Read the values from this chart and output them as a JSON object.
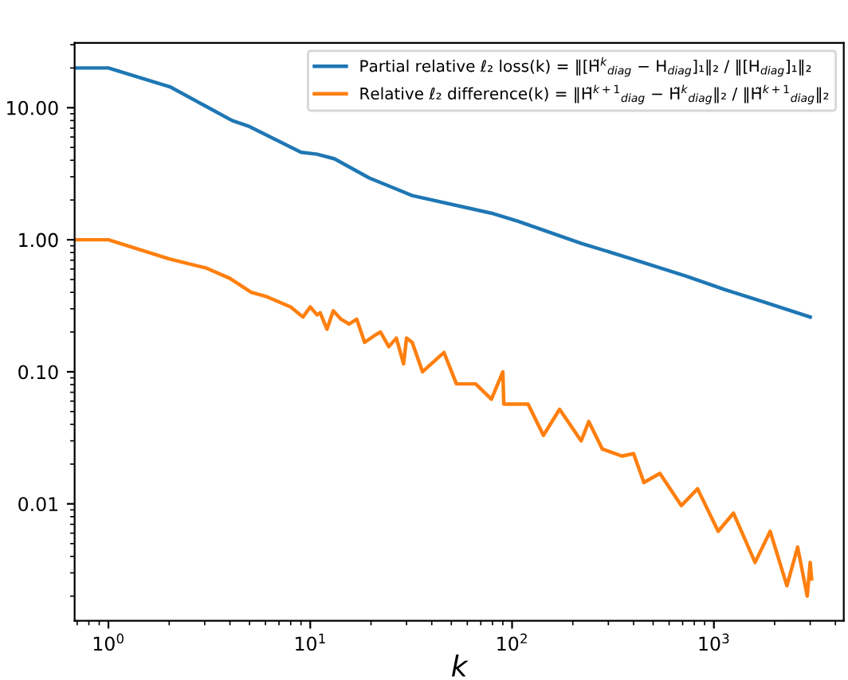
{
  "chart_data": {
    "type": "line",
    "xlabel": "k",
    "log": "xy",
    "legend": "top right",
    "grid": false,
    "xlim": [
      0.68,
      4400
    ],
    "ylim": [
      0.0013,
      31
    ],
    "xticks": [
      {
        "value": 1,
        "label": "10$^{0}$"
      },
      {
        "value": 10,
        "label": "10$^{1}$"
      },
      {
        "value": 100,
        "label": "10$^{2}$"
      },
      {
        "value": 1000,
        "label": "10$^{3}$"
      }
    ],
    "yticks": [
      {
        "value": 0.01,
        "label": "0.01"
      },
      {
        "value": 0.1,
        "label": "0.10"
      },
      {
        "value": 1,
        "label": "1.00"
      },
      {
        "value": 10,
        "label": "10.00"
      }
    ],
    "series": [
      {
        "name": "Partial relative ℓ₂ loss(k) = ‖[H̃$^{k}$$_{diag}$ − H$_{diag}$]₁‖₂ / ‖[H$_{diag}$]₁‖₂",
        "color": "#1f77b4",
        "x": [
          0.68,
          1,
          2.02,
          4.1,
          5,
          9,
          10.8,
          13.2,
          19.6,
          32,
          79,
          107,
          220,
          400,
          730,
          1130,
          1800,
          3000
        ],
        "values": [
          20,
          20,
          14.4,
          8.0,
          7.2,
          4.6,
          4.45,
          4.1,
          2.94,
          2.16,
          1.59,
          1.38,
          0.94,
          0.71,
          0.53,
          0.42,
          0.335,
          0.26
        ]
      },
      {
        "name": "Relative ℓ₂ difference(k) = ‖H̃$^{k+1}$$_{diag}$ − H̃$^{k}$$_{diag}$‖₂ / ‖H̃$^{k+1}$$_{diag}$‖₂",
        "color": "#ff7f0e",
        "x": [
          0.68,
          1,
          2.0,
          3.06,
          4.0,
          5.1,
          6.1,
          8.0,
          9.2,
          10,
          10.8,
          11.2,
          12.1,
          13,
          14.2,
          15.6,
          17,
          18.6,
          21,
          22.3,
          24.5,
          26.7,
          29,
          30,
          32,
          36,
          46,
          53,
          66,
          79,
          90,
          91,
          120,
          143,
          172,
          220,
          240,
          280,
          350,
          400,
          450,
          540,
          690,
          830,
          1050,
          1250,
          1600,
          1900,
          2300,
          2600,
          2900,
          3000,
          3050
        ],
        "values": [
          1.0,
          1.0,
          0.716,
          0.61,
          0.51,
          0.4,
          0.37,
          0.31,
          0.26,
          0.31,
          0.27,
          0.28,
          0.21,
          0.29,
          0.25,
          0.23,
          0.25,
          0.167,
          0.19,
          0.2,
          0.155,
          0.18,
          0.115,
          0.18,
          0.167,
          0.1,
          0.14,
          0.081,
          0.081,
          0.062,
          0.1,
          0.057,
          0.057,
          0.033,
          0.052,
          0.03,
          0.042,
          0.026,
          0.023,
          0.024,
          0.0145,
          0.017,
          0.0097,
          0.013,
          0.0062,
          0.0085,
          0.0036,
          0.0062,
          0.0024,
          0.0047,
          0.002,
          0.0036,
          0.0027
        ]
      }
    ]
  }
}
